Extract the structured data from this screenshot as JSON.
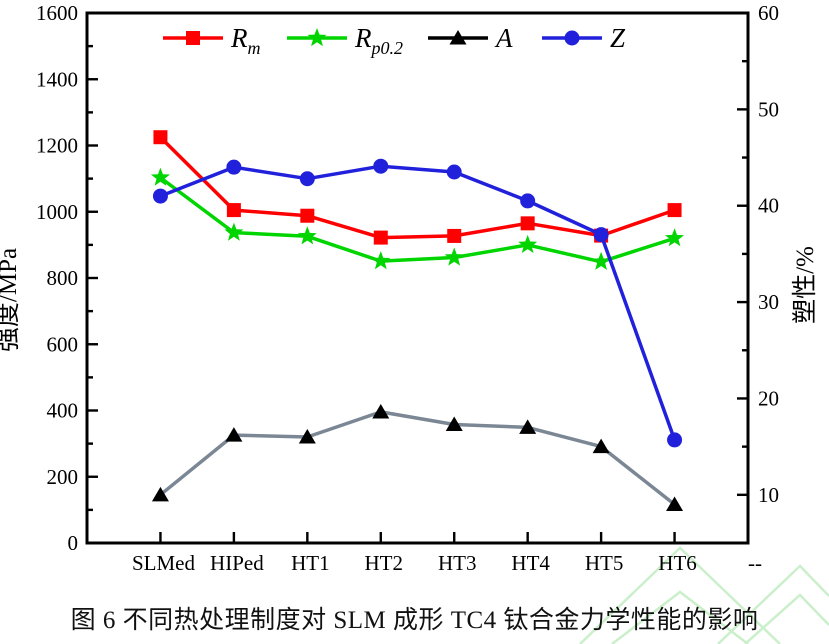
{
  "figure": {
    "caption": "图 6 不同热处理制度对 SLM 成形 TC4 钛合金力学性能的影响"
  },
  "chart_data": {
    "type": "line",
    "title": "",
    "xlabel": "",
    "categories": [
      "SLMed",
      "HIPed",
      "HT1",
      "HT2",
      "HT3",
      "HT4",
      "HT5",
      "HT6",
      "--"
    ],
    "series": [
      {
        "name": "Rm",
        "label": {
          "main": "R",
          "sub": "m"
        },
        "axis": "left",
        "marker": "square",
        "color": "#ff0000",
        "values": [
          1225,
          1005,
          988,
          922,
          927,
          965,
          928,
          1005
        ]
      },
      {
        "name": "Rp0.2",
        "label": {
          "main": "R",
          "sub": "p0.2"
        },
        "axis": "left",
        "marker": "star",
        "color": "#00d500",
        "values": [
          1103,
          937,
          926,
          851,
          862,
          900,
          849,
          920
        ]
      },
      {
        "name": "A",
        "label": {
          "main": "A",
          "sub": ""
        },
        "axis": "right",
        "marker": "triangle",
        "color": "#000000",
        "line_color": "#7b8794",
        "values": [
          10,
          16.2,
          16,
          18.6,
          17.3,
          17,
          15,
          9
        ]
      },
      {
        "name": "Z",
        "label": {
          "main": "Z",
          "sub": ""
        },
        "axis": "right",
        "marker": "circle",
        "color": "#2121dc",
        "values": [
          41,
          44,
          42.8,
          44.1,
          43.5,
          40.5,
          37,
          15.7
        ]
      }
    ],
    "left_axis": {
      "title": "强度/MPa",
      "min": 0,
      "max": 1600,
      "major_step": 200,
      "minor_step": 100
    },
    "right_axis": {
      "title": "塑性/%",
      "min": 5,
      "max": 60,
      "major_first": 10,
      "major_step": 10,
      "minor_first": 15,
      "minor_step": 10
    },
    "legend_position": "top-inside",
    "grid": false,
    "frame": true
  },
  "watermark": {
    "color": "#9fe29f",
    "opacity": 0.55
  }
}
